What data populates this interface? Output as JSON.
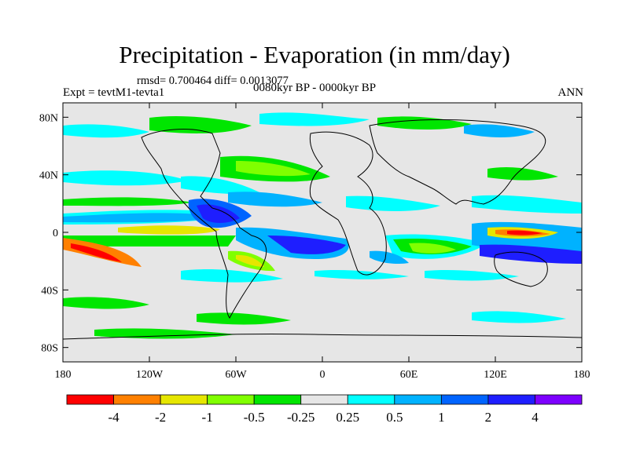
{
  "header": {
    "title": "Precipitation - Evaporation (in mm/day)",
    "stats": "rmsd= 0.700464 diff= 0.0013077",
    "experiment": "Expt = tevtM1-tevta1",
    "period": "0080kyr BP - 0000kyr BP",
    "season": "ANN"
  },
  "axes": {
    "y_ticks": [
      {
        "label": "80N",
        "lat": 80
      },
      {
        "label": "40N",
        "lat": 40
      },
      {
        "label": "0",
        "lat": 0
      },
      {
        "label": "40S",
        "lat": -40
      },
      {
        "label": "80S",
        "lat": -80
      }
    ],
    "x_ticks": [
      {
        "label": "180",
        "lon": -180
      },
      {
        "label": "120W",
        "lon": -120
      },
      {
        "label": "60W",
        "lon": -60
      },
      {
        "label": "0",
        "lon": 0
      },
      {
        "label": "60E",
        "lon": 60
      },
      {
        "label": "120E",
        "lon": 120
      },
      {
        "label": "180",
        "lon": 180
      }
    ],
    "lat_range": [
      -90,
      90
    ],
    "lon_range": [
      -180,
      180
    ]
  },
  "colorbar": {
    "colors": [
      "#ff0000",
      "#ff8000",
      "#e6e600",
      "#80ff00",
      "#00e600",
      "#e6e6e6",
      "#00ffff",
      "#00b2ff",
      "#0064ff",
      "#1e1eff",
      "#7d00ff"
    ],
    "labels": [
      "-4",
      "-2",
      "-1",
      "-0.5",
      "-0.25",
      "0.25",
      "0.5",
      "1",
      "2",
      "4"
    ]
  },
  "colors": {
    "background": "#e6e6e6",
    "coast": "#000000"
  }
}
